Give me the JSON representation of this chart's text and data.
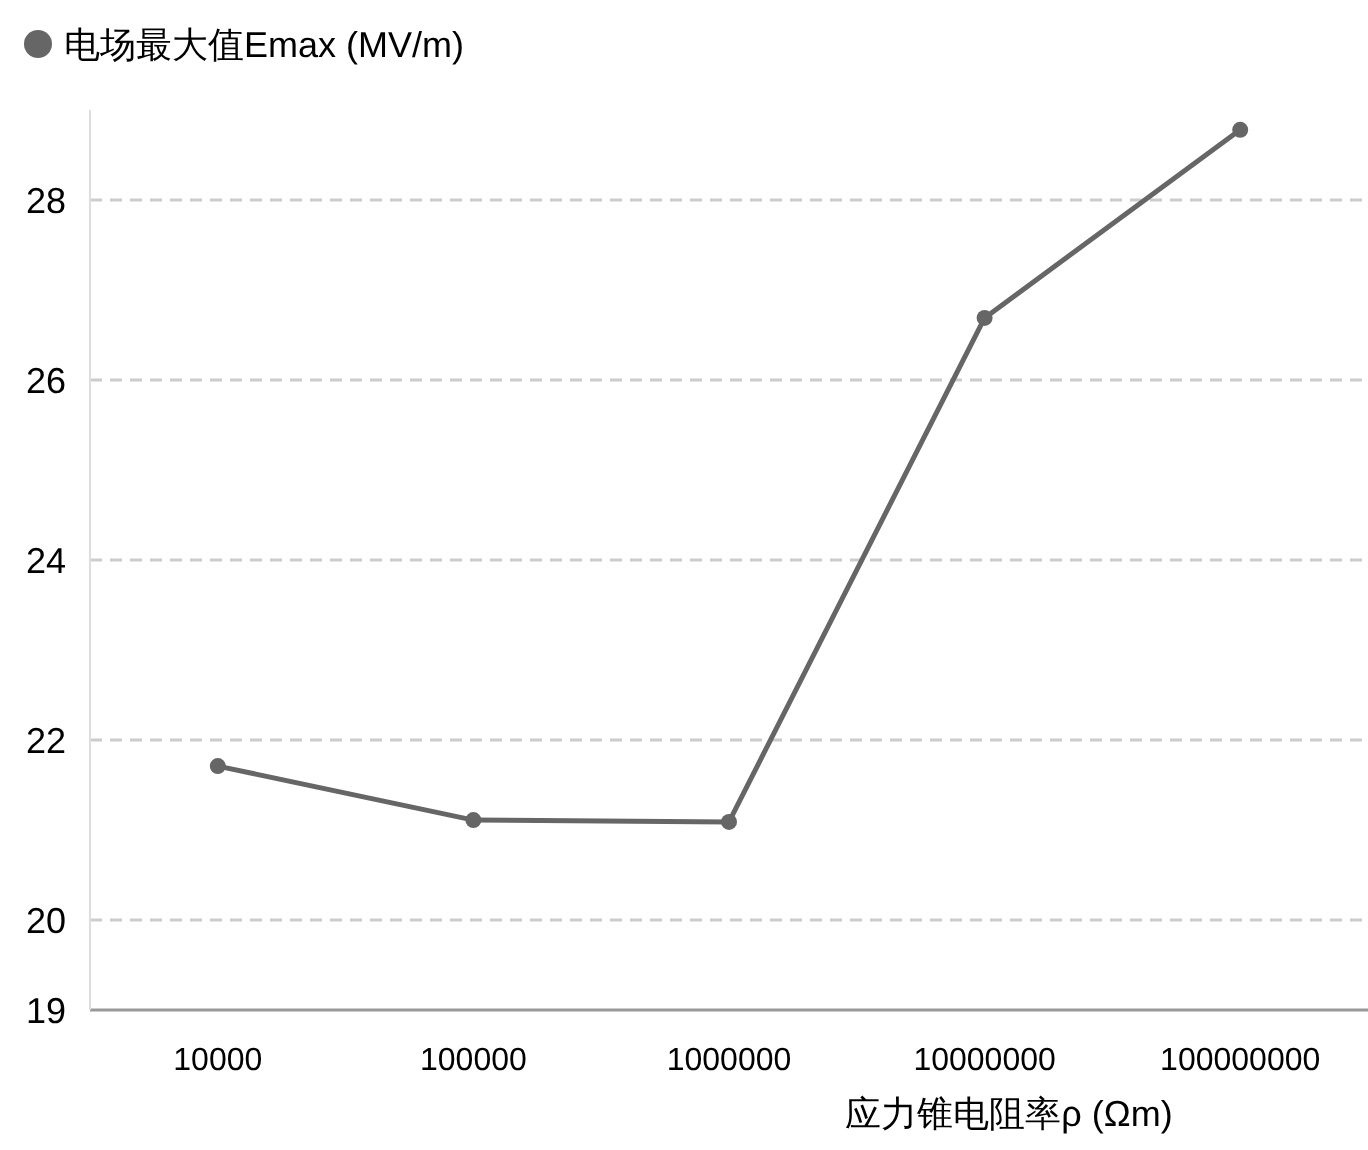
{
  "chart_data": {
    "type": "line",
    "xlabel": "应力锥电阻率ρ (Ωm)",
    "categories": [
      "10000",
      "100000",
      "1000000",
      "10000000",
      "100000000"
    ],
    "series": [
      {
        "name": "电场最大值Emax (MV/m)",
        "color": "#666666",
        "values": [
          21.71,
          21.11,
          21.09,
          26.69,
          28.78
        ]
      }
    ],
    "ylim": [
      19,
      29
    ],
    "yticks": [
      19,
      20,
      22,
      24,
      26,
      28
    ],
    "grid": "y",
    "legend": "top left",
    "marker": "circle",
    "line_style": "solid"
  }
}
